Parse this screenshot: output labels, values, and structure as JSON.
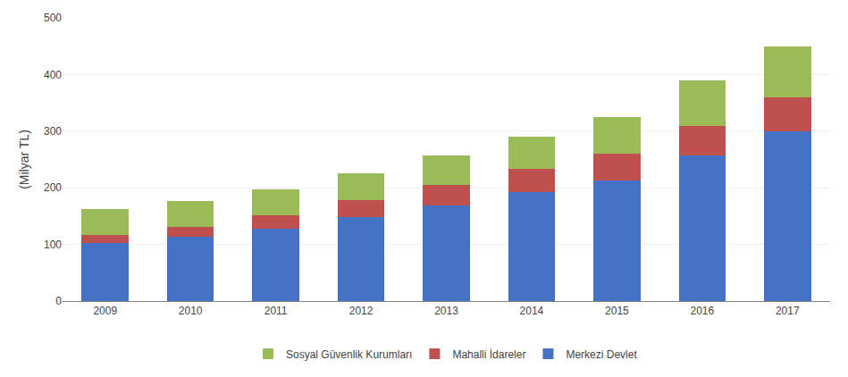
{
  "chart_data": {
    "type": "bar",
    "stacked": true,
    "categories": [
      "2009",
      "2010",
      "2011",
      "2012",
      "2013",
      "2014",
      "2015",
      "2016",
      "2017"
    ],
    "series": [
      {
        "name": "Merkezi Devlet",
        "color": "#4472C4",
        "values": [
          102,
          113,
          127,
          148,
          168,
          192,
          213,
          257,
          300
        ]
      },
      {
        "name": "Mahalli İdareler",
        "color": "#C0504D",
        "values": [
          15,
          18,
          25,
          30,
          37,
          42,
          47,
          52,
          60
        ]
      },
      {
        "name": "Sosyal Güvenlik Kurumları",
        "color": "#9BBB59",
        "values": [
          45,
          45,
          45,
          47,
          52,
          57,
          65,
          80,
          90
        ]
      }
    ],
    "ylabel": "(Milyar TL)",
    "ylim": [
      0,
      500
    ],
    "yticks": [
      0,
      100,
      200,
      300,
      400,
      500
    ],
    "grid": true,
    "legend": "bottom"
  }
}
